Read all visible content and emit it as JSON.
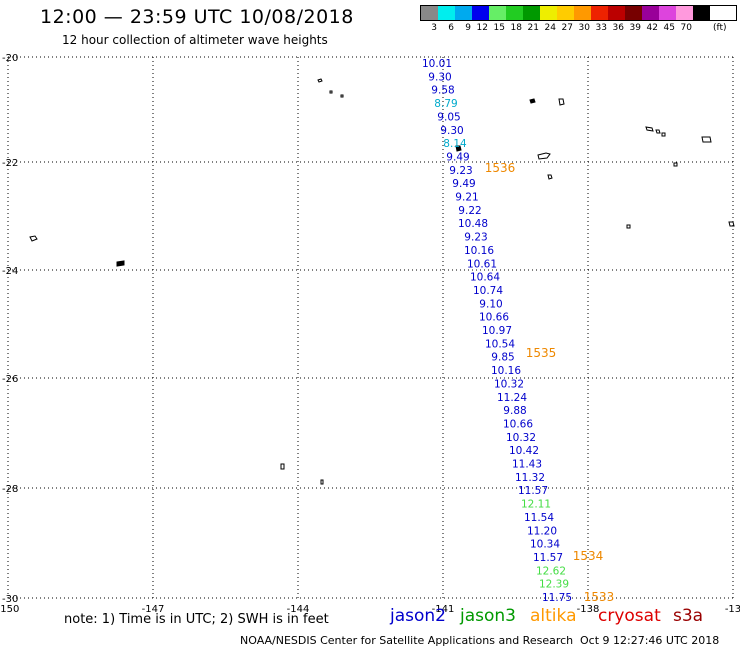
{
  "header": {
    "title": "12:00 — 23:59 UTC 10/08/2018",
    "subtitle": "12 hour collection of altimeter wave heights"
  },
  "colorbar": {
    "unit": "(ft)",
    "bins": [
      {
        "label": "3",
        "color": "#888888"
      },
      {
        "label": "6",
        "color": "#00eeee"
      },
      {
        "label": "9",
        "color": "#00aaee"
      },
      {
        "label": "12",
        "color": "#0000ee"
      },
      {
        "label": "15",
        "color": "#66ee66"
      },
      {
        "label": "18",
        "color": "#22cc22"
      },
      {
        "label": "21",
        "color": "#009900"
      },
      {
        "label": "24",
        "color": "#eeee00"
      },
      {
        "label": "27",
        "color": "#ffcc00"
      },
      {
        "label": "30",
        "color": "#ff9900"
      },
      {
        "label": "33",
        "color": "#ee2200"
      },
      {
        "label": "36",
        "color": "#bb0000"
      },
      {
        "label": "39",
        "color": "#770000"
      },
      {
        "label": "42",
        "color": "#990099"
      },
      {
        "label": "45",
        "color": "#dd44dd"
      },
      {
        "label": "70",
        "color": "#ff99dd"
      },
      {
        "label": "",
        "color": "#000000"
      }
    ]
  },
  "map": {
    "x_ticks": [
      "-150",
      "-147",
      "-144",
      "-141",
      "-138",
      "-13"
    ],
    "y_ticks": [
      "-20",
      "-22",
      "-24",
      "-26",
      "-28",
      "-30"
    ],
    "grid": "dotted"
  },
  "track": {
    "readings": [
      {
        "value": "10.01",
        "color": "#0000cc"
      },
      {
        "value": "9.30",
        "color": "#0000cc"
      },
      {
        "value": "9.58",
        "color": "#0000cc"
      },
      {
        "value": "8.79",
        "color": "#00aacc"
      },
      {
        "value": "9.05",
        "color": "#0000cc"
      },
      {
        "value": "9.30",
        "color": "#0000cc"
      },
      {
        "value": "8.14",
        "color": "#00aacc"
      },
      {
        "value": "9.49",
        "color": "#0000cc"
      },
      {
        "value": "9.23",
        "color": "#0000cc"
      },
      {
        "value": "9.49",
        "color": "#0000cc"
      },
      {
        "value": "9.21",
        "color": "#0000cc"
      },
      {
        "value": "9.22",
        "color": "#0000cc"
      },
      {
        "value": "10.48",
        "color": "#0000cc"
      },
      {
        "value": "9.23",
        "color": "#0000cc"
      },
      {
        "value": "10.16",
        "color": "#0000cc"
      },
      {
        "value": "10.61",
        "color": "#0000cc"
      },
      {
        "value": "10.64",
        "color": "#0000cc"
      },
      {
        "value": "10.74",
        "color": "#0000cc"
      },
      {
        "value": "9.10",
        "color": "#0000cc"
      },
      {
        "value": "10.66",
        "color": "#0000cc"
      },
      {
        "value": "10.97",
        "color": "#0000cc"
      },
      {
        "value": "10.54",
        "color": "#0000cc"
      },
      {
        "value": "9.85",
        "color": "#0000cc"
      },
      {
        "value": "10.16",
        "color": "#0000cc"
      },
      {
        "value": "10.32",
        "color": "#0000cc"
      },
      {
        "value": "11.24",
        "color": "#0000cc"
      },
      {
        "value": "9.88",
        "color": "#0000cc"
      },
      {
        "value": "10.66",
        "color": "#0000cc"
      },
      {
        "value": "10.32",
        "color": "#0000cc"
      },
      {
        "value": "10.42",
        "color": "#0000cc"
      },
      {
        "value": "11.43",
        "color": "#0000cc"
      },
      {
        "value": "11.32",
        "color": "#0000cc"
      },
      {
        "value": "11.57",
        "color": "#0000cc"
      },
      {
        "value": "12.11",
        "color": "#44dd44"
      },
      {
        "value": "11.54",
        "color": "#0000cc"
      },
      {
        "value": "11.20",
        "color": "#0000cc"
      },
      {
        "value": "10.34",
        "color": "#0000cc"
      },
      {
        "value": "11.57",
        "color": "#0000cc"
      },
      {
        "value": "12.62",
        "color": "#44dd44"
      },
      {
        "value": "12.39",
        "color": "#44dd44"
      },
      {
        "value": "11.75",
        "color": "#0000cc"
      }
    ],
    "time_labels": [
      {
        "text": "1536",
        "color": "#ee8800"
      },
      {
        "text": "1535",
        "color": "#ee8800"
      },
      {
        "text": "1534",
        "color": "#ee8800"
      },
      {
        "text": "1533",
        "color": "#ee8800"
      }
    ]
  },
  "footer": {
    "note": "note: 1) Time is in UTC; 2) SWH is in feet",
    "legend": [
      {
        "name": "jason2",
        "color": "#0000cc"
      },
      {
        "name": "jason3",
        "color": "#009900"
      },
      {
        "name": "altika",
        "color": "#ff9900"
      },
      {
        "name": "cryosat",
        "color": "#dd0000"
      },
      {
        "name": "s3a",
        "color": "#990000"
      }
    ],
    "credit": "NOAA/NESDIS Center for Satellite Applications and Research",
    "timestamp": "Oct  9 12:27:46 UTC 2018"
  }
}
